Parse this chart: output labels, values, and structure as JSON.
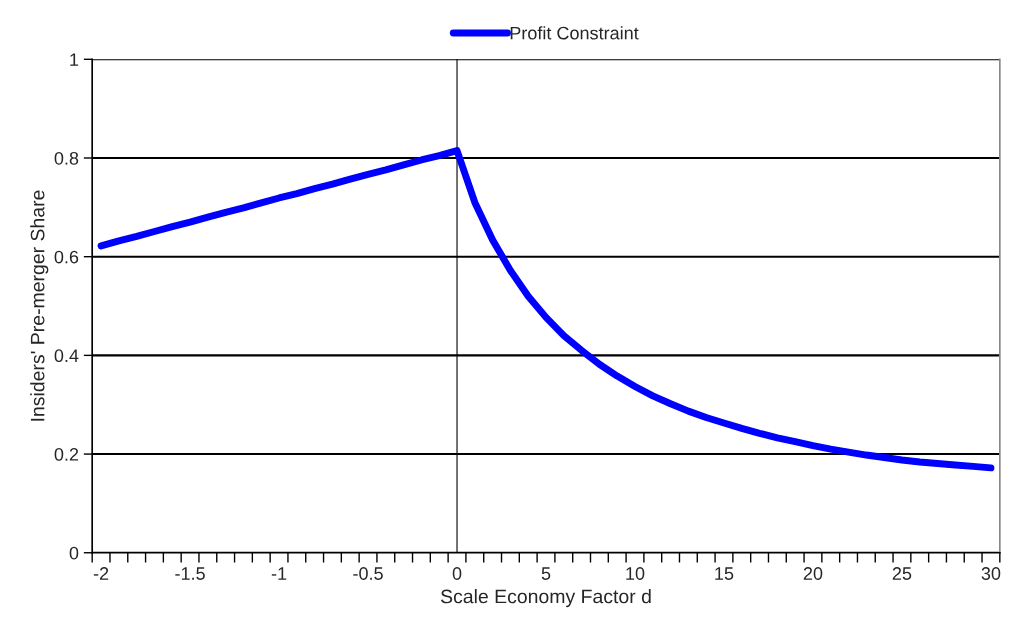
{
  "chart_data": {
    "type": "line",
    "categories": [
      "-2",
      null,
      null,
      null,
      null,
      "-1.5",
      null,
      null,
      null,
      null,
      "-1",
      null,
      null,
      null,
      null,
      "-0.5",
      null,
      null,
      null,
      null,
      "0",
      null,
      null,
      null,
      null,
      "5",
      null,
      null,
      null,
      null,
      "10",
      null,
      null,
      null,
      null,
      "15",
      null,
      null,
      null,
      null,
      "20",
      null,
      null,
      null,
      null,
      "25",
      null,
      null,
      null,
      null,
      "30"
    ],
    "series": [
      {
        "name": "Profit Constraint",
        "color": "#0000ff",
        "values": [
          0.622,
          0.632,
          0.641,
          0.651,
          0.661,
          0.67,
          0.68,
          0.69,
          0.699,
          0.709,
          0.719,
          0.728,
          0.738,
          0.747,
          0.757,
          0.767,
          0.776,
          0.786,
          0.796,
          0.805,
          0.815,
          0.71,
          0.634,
          0.572,
          0.52,
          0.477,
          0.44,
          0.41,
          0.382,
          0.358,
          0.337,
          0.318,
          0.302,
          0.287,
          0.274,
          0.263,
          0.252,
          0.242,
          0.233,
          0.225,
          0.217,
          0.21,
          0.204,
          0.198,
          0.193,
          0.188,
          0.184,
          0.181,
          0.178,
          0.175,
          0.172
        ]
      }
    ],
    "xlabel": "Scale Economy Factor d",
    "ylabel": "Insiders' Pre-merger Share",
    "ylim": [
      0,
      1
    ],
    "yticks": [
      0,
      0.2,
      0.4,
      0.6,
      0.8,
      1
    ],
    "grid": "y",
    "legend": "top",
    "marker": "none",
    "line_style": "solid",
    "ref_lines": [
      {
        "axis": "x",
        "value": "0",
        "color": "#000000"
      }
    ]
  }
}
